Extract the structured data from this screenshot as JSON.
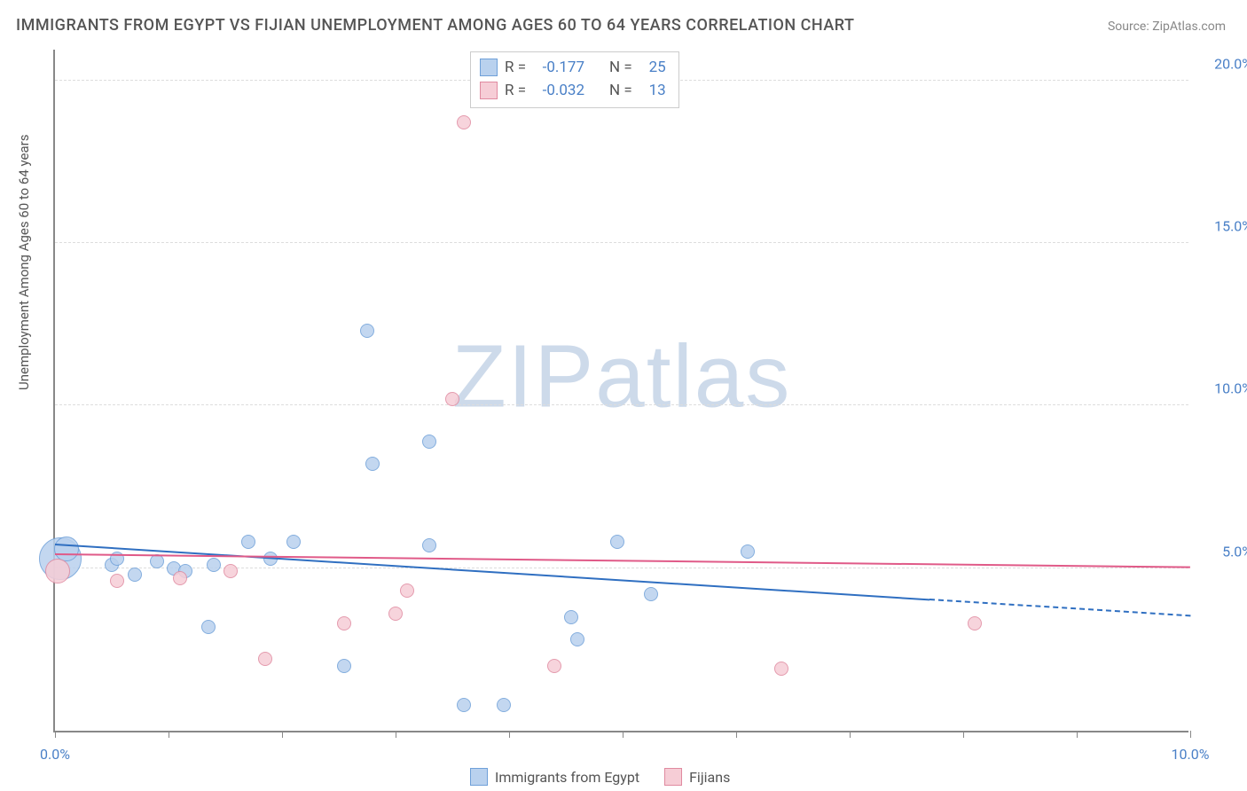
{
  "title": "IMMIGRANTS FROM EGYPT VS FIJIAN UNEMPLOYMENT AMONG AGES 60 TO 64 YEARS CORRELATION CHART",
  "source": "Source: ZipAtlas.com",
  "y_axis_label": "Unemployment Among Ages 60 to 64 years",
  "watermark_bold": "ZIP",
  "watermark_light": "atlas",
  "chart": {
    "type": "scatter",
    "xlim": [
      0,
      10
    ],
    "ylim": [
      0,
      21
    ],
    "x_ticks": [
      0,
      1,
      2,
      3,
      4,
      5,
      6,
      7,
      8,
      9,
      10
    ],
    "x_tick_labels": {
      "0": "0.0%",
      "10": "10.0%"
    },
    "y_gridlines": [
      5,
      10,
      15,
      20
    ],
    "y_tick_labels": {
      "5": "5.0%",
      "10": "10.0%",
      "15": "15.0%",
      "20": "20.0%"
    },
    "background_color": "#ffffff",
    "grid_color": "#dddddd",
    "axis_color": "#888888",
    "tick_label_color": "#4a80c7",
    "title_fontsize": 18,
    "label_fontsize": 15
  },
  "series": [
    {
      "name": "Immigrants from Egypt",
      "fill_color": "#b9d1ee",
      "stroke_color": "#6fa0d9",
      "line_color": "#2f6fc1",
      "R": "-0.177",
      "N": "25",
      "points": [
        {
          "x": 0.05,
          "y": 5.3,
          "r": 24
        },
        {
          "x": 0.1,
          "y": 5.6,
          "r": 14
        },
        {
          "x": 0.5,
          "y": 5.1,
          "r": 8
        },
        {
          "x": 0.55,
          "y": 5.3,
          "r": 8
        },
        {
          "x": 0.7,
          "y": 4.8,
          "r": 8
        },
        {
          "x": 0.9,
          "y": 5.2,
          "r": 8
        },
        {
          "x": 1.05,
          "y": 5.0,
          "r": 8
        },
        {
          "x": 1.15,
          "y": 4.9,
          "r": 8
        },
        {
          "x": 1.35,
          "y": 3.2,
          "r": 8
        },
        {
          "x": 1.4,
          "y": 5.1,
          "r": 8
        },
        {
          "x": 1.7,
          "y": 5.8,
          "r": 8
        },
        {
          "x": 1.9,
          "y": 5.3,
          "r": 8
        },
        {
          "x": 2.1,
          "y": 5.8,
          "r": 8
        },
        {
          "x": 2.55,
          "y": 2.0,
          "r": 8
        },
        {
          "x": 2.8,
          "y": 8.2,
          "r": 8
        },
        {
          "x": 2.75,
          "y": 12.3,
          "r": 8
        },
        {
          "x": 3.3,
          "y": 8.9,
          "r": 8
        },
        {
          "x": 3.3,
          "y": 5.7,
          "r": 8
        },
        {
          "x": 3.6,
          "y": 0.8,
          "r": 8
        },
        {
          "x": 3.95,
          "y": 0.8,
          "r": 8
        },
        {
          "x": 4.55,
          "y": 3.5,
          "r": 8
        },
        {
          "x": 4.6,
          "y": 2.8,
          "r": 8
        },
        {
          "x": 4.95,
          "y": 5.8,
          "r": 8
        },
        {
          "x": 5.25,
          "y": 4.2,
          "r": 8
        },
        {
          "x": 6.1,
          "y": 5.5,
          "r": 8
        }
      ],
      "trend": {
        "x1": 0,
        "y1": 5.7,
        "x2": 7.7,
        "y2": 4.0,
        "dash_x2": 10,
        "dash_y2": 3.5
      }
    },
    {
      "name": "Fijians",
      "fill_color": "#f6cdd6",
      "stroke_color": "#e08aa0",
      "line_color": "#e05a88",
      "R": "-0.032",
      "N": "13",
      "points": [
        {
          "x": 0.02,
          "y": 4.9,
          "r": 14
        },
        {
          "x": 0.55,
          "y": 4.6,
          "r": 8
        },
        {
          "x": 1.1,
          "y": 4.7,
          "r": 8
        },
        {
          "x": 1.55,
          "y": 4.9,
          "r": 8
        },
        {
          "x": 1.85,
          "y": 2.2,
          "r": 8
        },
        {
          "x": 2.55,
          "y": 3.3,
          "r": 8
        },
        {
          "x": 3.0,
          "y": 3.6,
          "r": 8
        },
        {
          "x": 3.1,
          "y": 4.3,
          "r": 8
        },
        {
          "x": 3.5,
          "y": 10.2,
          "r": 8
        },
        {
          "x": 3.6,
          "y": 18.7,
          "r": 8
        },
        {
          "x": 4.4,
          "y": 2.0,
          "r": 8
        },
        {
          "x": 6.4,
          "y": 1.9,
          "r": 8
        },
        {
          "x": 8.1,
          "y": 3.3,
          "r": 8
        }
      ],
      "trend": {
        "x1": 0,
        "y1": 5.4,
        "x2": 10,
        "y2": 5.0
      }
    }
  ],
  "stats_box": {
    "r_label": "R  =",
    "n_label": "N  ="
  }
}
